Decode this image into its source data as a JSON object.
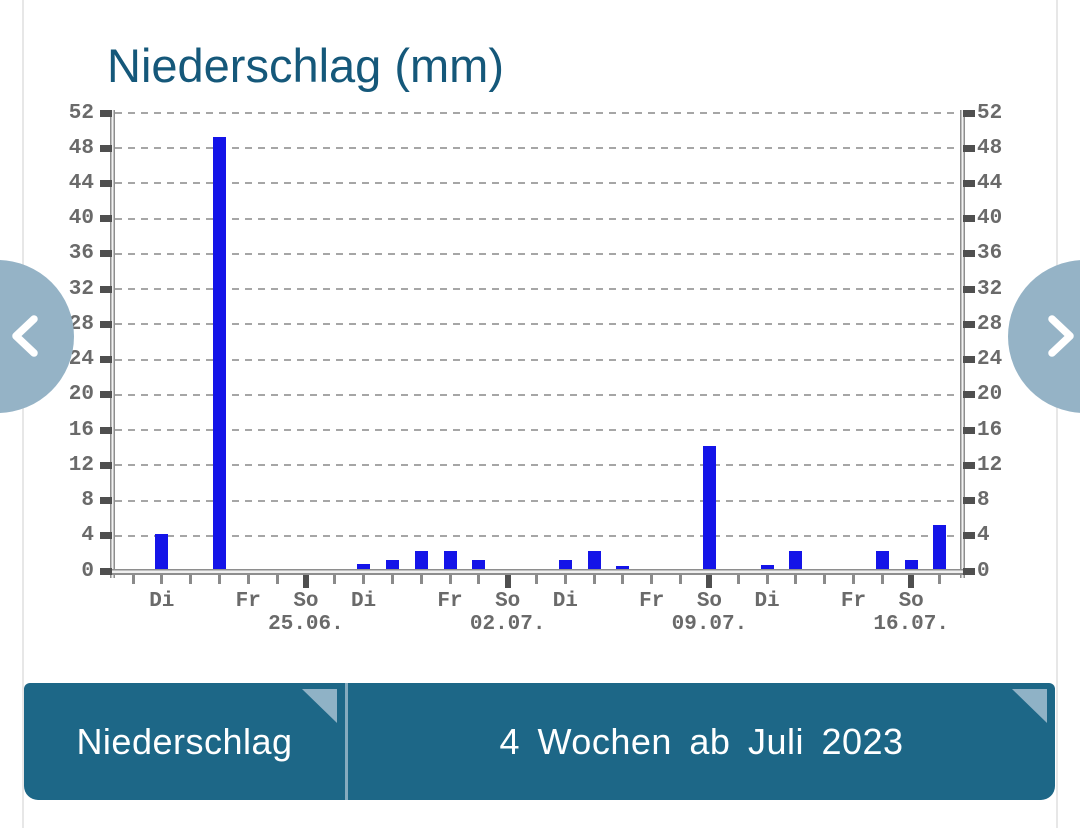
{
  "colors": {
    "background": "#ffffff",
    "title": "#15587a",
    "footer_bar": "#1d6787",
    "footer_divider": "#85abbf",
    "fold": "#8fb2c6",
    "nav_circle": "#95b3c6",
    "bar": "#1414e8",
    "label": "#6a6a6a",
    "grid": "#a6a6a6",
    "axis": "#8e8e8e",
    "tick": "#4f4f4f"
  },
  "nav": {
    "prev_icon": "chevron-left-icon",
    "next_icon": "chevron-right-icon"
  },
  "footer": {
    "left_label": "Niederschlag",
    "right_label": "4 Wochen ab Juli 2023",
    "fold_icon": "folded-corner-icon"
  },
  "chart_data": {
    "type": "bar",
    "title": "Niederschlag (mm)",
    "unit": "mm",
    "ylim": [
      0,
      52
    ],
    "ytick_step": 4,
    "yticks": [
      0,
      4,
      8,
      12,
      16,
      20,
      24,
      28,
      32,
      36,
      40,
      44,
      48,
      52
    ],
    "y_axis_sides": "both",
    "grid": "dashed-horizontal",
    "num_days": 29,
    "x_axis_note": "one tick per day, Sundays emphasized",
    "bars": [
      {
        "day": 1,
        "value": 4
      },
      {
        "day": 3,
        "value": 49
      },
      {
        "day": 8,
        "value": 0.6
      },
      {
        "day": 9,
        "value": 1
      },
      {
        "day": 10,
        "value": 2
      },
      {
        "day": 11,
        "value": 2
      },
      {
        "day": 12,
        "value": 1
      },
      {
        "day": 15,
        "value": 1
      },
      {
        "day": 16,
        "value": 2
      },
      {
        "day": 17,
        "value": 0.3
      },
      {
        "day": 20,
        "value": 14
      },
      {
        "day": 22,
        "value": 0.4
      },
      {
        "day": 23,
        "value": 2
      },
      {
        "day": 26,
        "value": 2
      },
      {
        "day": 27,
        "value": 1
      },
      {
        "day": 28,
        "value": 5
      }
    ],
    "weekday_labels": [
      {
        "day": 1,
        "label": "Di"
      },
      {
        "day": 4,
        "label": "Fr"
      },
      {
        "day": 6,
        "label": "So"
      },
      {
        "day": 8,
        "label": "Di"
      },
      {
        "day": 11,
        "label": "Fr"
      },
      {
        "day": 13,
        "label": "So"
      },
      {
        "day": 15,
        "label": "Di"
      },
      {
        "day": 18,
        "label": "Fr"
      },
      {
        "day": 20,
        "label": "So"
      },
      {
        "day": 22,
        "label": "Di"
      },
      {
        "day": 25,
        "label": "Fr"
      },
      {
        "day": 27,
        "label": "So"
      }
    ],
    "date_labels": [
      {
        "day": 6,
        "label": "25.06."
      },
      {
        "day": 13,
        "label": "02.07."
      },
      {
        "day": 20,
        "label": "09.07."
      },
      {
        "day": 27,
        "label": "16.07."
      }
    ]
  }
}
